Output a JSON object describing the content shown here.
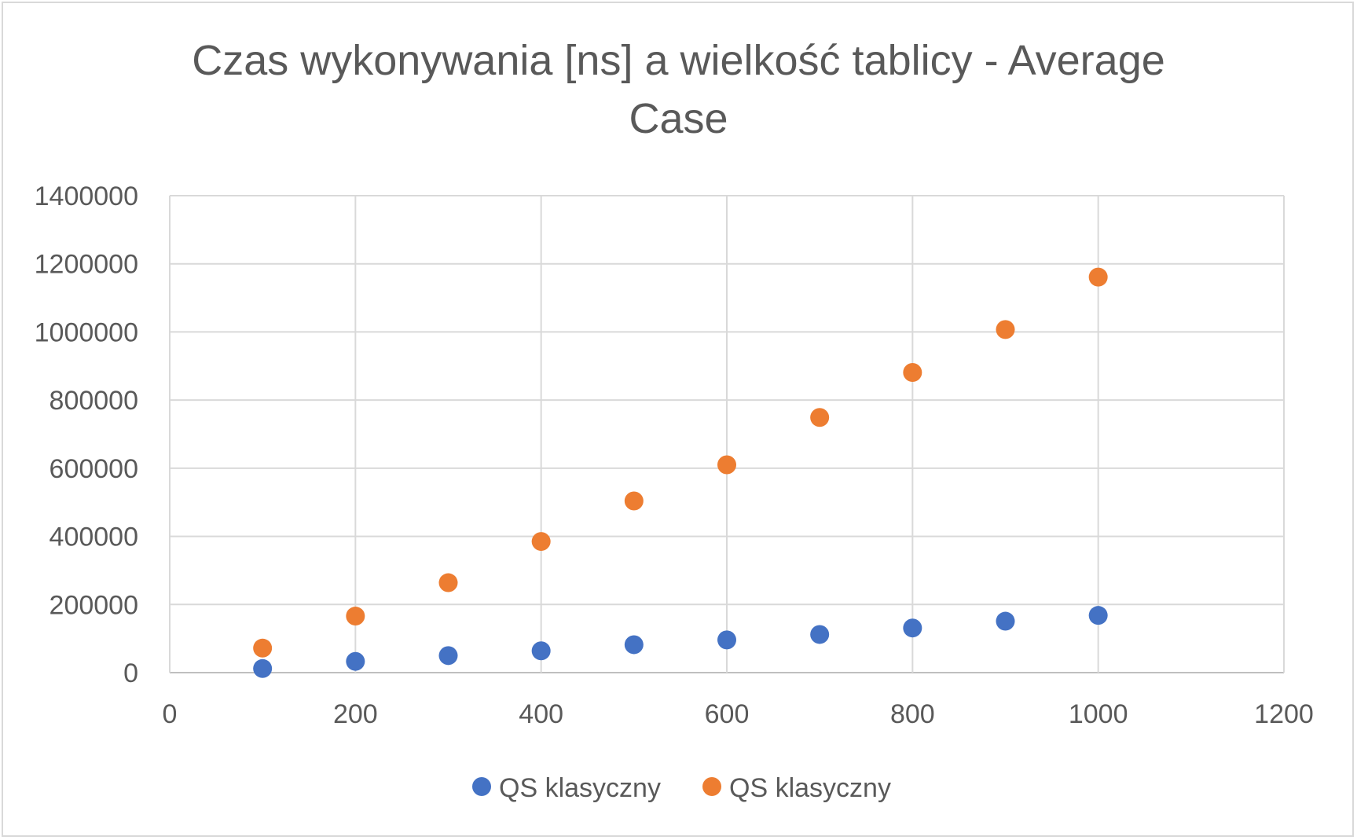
{
  "chart_data": {
    "type": "scatter",
    "title_lines": [
      "Czas wykonywania [ns] a wielkość tablicy - Average",
      "Case"
    ],
    "xlabel": "",
    "ylabel": "",
    "xlim": [
      0,
      1200
    ],
    "ylim": [
      0,
      1400000
    ],
    "x_ticks": [
      0,
      200,
      400,
      600,
      800,
      1000,
      1200
    ],
    "y_ticks": [
      0,
      200000,
      400000,
      600000,
      800000,
      1000000,
      1200000,
      1400000
    ],
    "x_tick_labels": [
      "0",
      "200",
      "400",
      "600",
      "800",
      "1000",
      "1200"
    ],
    "y_tick_labels": [
      "0",
      "200000",
      "400000",
      "600000",
      "800000",
      "1000000",
      "1200000",
      "1400000"
    ],
    "grid": true,
    "legend_position": "bottom",
    "series": [
      {
        "name": "QS klasyczny",
        "color": "#4472c4",
        "x": [
          100,
          200,
          300,
          400,
          500,
          600,
          700,
          800,
          900,
          1000
        ],
        "y": [
          12000,
          33000,
          50000,
          64000,
          82000,
          96000,
          112000,
          131000,
          151000,
          168000
        ]
      },
      {
        "name": "QS klasyczny",
        "color": "#ed7d31",
        "x": [
          100,
          200,
          300,
          400,
          500,
          600,
          700,
          800,
          900,
          1000
        ],
        "y": [
          72000,
          166000,
          264000,
          385000,
          504000,
          610000,
          749000,
          881000,
          1007000,
          1161000
        ]
      }
    ]
  }
}
